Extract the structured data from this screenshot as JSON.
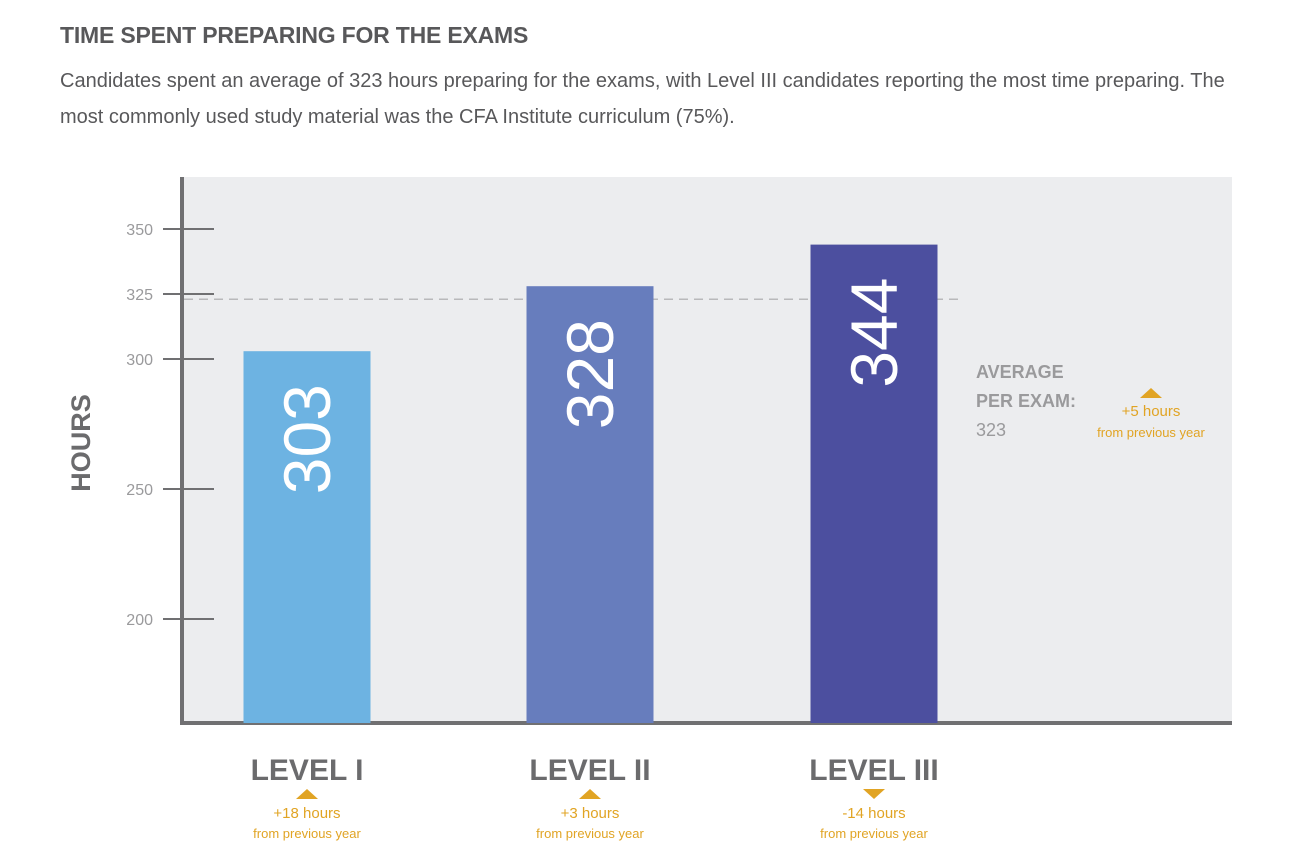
{
  "header": {
    "title": "TIME SPENT PREPARING FOR THE EXAMS",
    "subtitle": "Candidates spent an average of 323 hours preparing for the exams, with Level III candidates reporting the most time preparing. The most commonly used study material was the CFA Institute curriculum (75%)."
  },
  "colors": {
    "background": "#ecedef",
    "axis": "#707072",
    "tick_text": "#9a9a9c",
    "label_text": "#6b6b6d",
    "accent": "#e1a424",
    "bar_level1": "#6db3e2",
    "bar_level2": "#677dbd",
    "bar_level3": "#4c4f9f"
  },
  "chart_data": {
    "type": "bar",
    "ylabel": "HOURS",
    "ylim": [
      160,
      370
    ],
    "yticks": [
      200,
      250,
      300,
      325,
      350
    ],
    "categories": [
      "LEVEL I",
      "LEVEL II",
      "LEVEL III"
    ],
    "values": [
      303,
      328,
      344
    ],
    "value_labels": [
      "303",
      "328",
      "344"
    ],
    "changes": [
      {
        "direction": "up",
        "amount": "+18 hours",
        "note": "from previous year"
      },
      {
        "direction": "up",
        "amount": "+3 hours",
        "note": "from previous year"
      },
      {
        "direction": "down",
        "amount": "-14 hours",
        "note": "from previous year"
      }
    ],
    "average": {
      "value": 323,
      "label_lines": [
        "AVERAGE",
        "PER EXAM:",
        "323"
      ],
      "change": {
        "direction": "up",
        "amount": "+5 hours",
        "note": "from previous year"
      }
    }
  }
}
